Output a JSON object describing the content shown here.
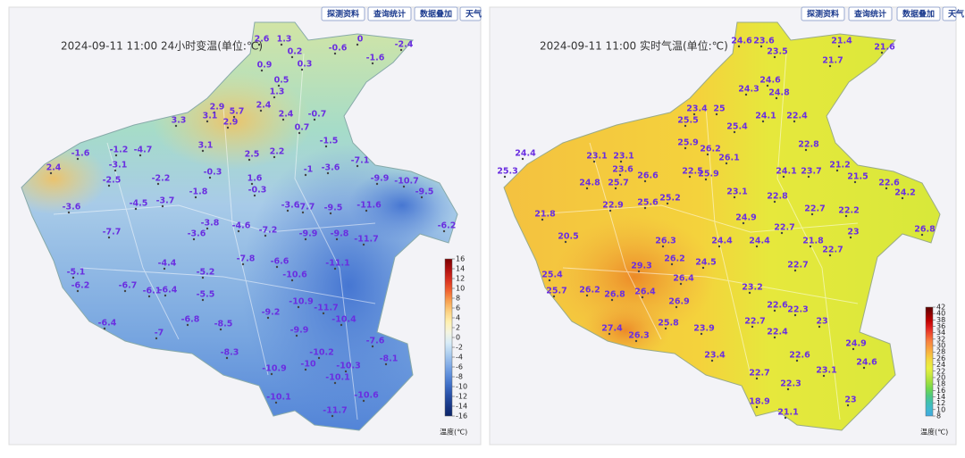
{
  "left_panel": {
    "buttons": [
      "探测资料",
      "查询统计",
      "数据叠加",
      "天气"
    ],
    "title": "2024-09-11 11:00 24小时变温(单位:℃)",
    "legend": {
      "labels": [
        16,
        14,
        12,
        10,
        8,
        6,
        4,
        2,
        0,
        -2,
        -4,
        -6,
        -8,
        -10,
        -12,
        -14,
        -16
      ],
      "colors": [
        "#7a0000",
        "#b01010",
        "#d83020",
        "#f06030",
        "#f8a050",
        "#fcd080",
        "#fff0b0",
        "#f4f4e0",
        "#d8ecf8",
        "#b0d0f0",
        "#88b0e8",
        "#6090dc",
        "#4070c8",
        "#2850a8",
        "#183888",
        "#0c2468"
      ],
      "unit": "温度(℃)"
    },
    "stations": [
      "2.6",
      "1.3",
      "0.2",
      "-0.6",
      "0",
      "-2.4",
      "-1.6",
      "0.9",
      "0.3",
      "0.5",
      "1.3",
      "2.9",
      "5.7",
      "2.4",
      "-0.7",
      "3.3",
      "3.1",
      "2.9",
      "2.4",
      "0.7",
      "-1.5",
      "-1.6",
      "-1.2",
      "-4.7",
      "3.1",
      "2.5",
      "2.2",
      "2.4",
      "-3.1",
      "-0.3",
      "-1",
      "-3.6",
      "-7.1",
      "-2.5",
      "-2.2",
      "1.6",
      "-10.7",
      "-9.9",
      "-1.8",
      "-0.3",
      "-3.6",
      "-4.5",
      "-3.7",
      "-3.6",
      "-7.7",
      "-9.5",
      "-11.6",
      "-9.5",
      "-6.2",
      "-3.8",
      "-4.6",
      "-7.2",
      "-7.7",
      "-3.6",
      "-9.9",
      "-9.8",
      "-11.7",
      "-4.4",
      "-5.1",
      "-5.2",
      "-7.8",
      "-6.6",
      "-11.1",
      "-6.2",
      "-6.7",
      "-6.1",
      "-6.4",
      "-5.5",
      "-10.6",
      "-10.9",
      "-11.7",
      "-9.2",
      "-6.8",
      "-6.4",
      "-8.5",
      "-10.4",
      "-9.9",
      "-7",
      "-7.6",
      "-8.3",
      "-10.2",
      "-8.1",
      "-10.9",
      "-10",
      "-10.3",
      "-10.1",
      "-10.1",
      "-10.6",
      "-11.7"
    ]
  },
  "right_panel": {
    "buttons": [
      "探测资料",
      "查询统计",
      "数据叠加",
      "天气"
    ],
    "title": "2024-09-11 11:00 实时气温(单位:℃)",
    "legend": {
      "labels": [
        42,
        40,
        38,
        36,
        34,
        32,
        30,
        28,
        26,
        24,
        22,
        20,
        18,
        16,
        14,
        12,
        10,
        8
      ],
      "colors": [
        "#5a0000",
        "#900000",
        "#c00000",
        "#e02020",
        "#f05030",
        "#f88040",
        "#f8a040",
        "#f8c040",
        "#f0e040",
        "#e8f040",
        "#c8e840",
        "#a0e040",
        "#70d850",
        "#50c880",
        "#40c0b0",
        "#40b8d0",
        "#40a8e0"
      ],
      "unit": "温度(℃)"
    },
    "stations": [
      "24.4",
      "25.3",
      "21.8",
      "20.5",
      "25.4",
      "25.7",
      "26.2",
      "26.8",
      "29.3",
      "27.4",
      "26.3",
      "23.1",
      "23.1",
      "23.6",
      "25.7",
      "24.8",
      "22.9",
      "25.6",
      "25.2",
      "26.4",
      "26.4",
      "26.9",
      "25.8",
      "23.9",
      "23.4",
      "24.5",
      "24.4",
      "24.9",
      "24.4",
      "24.6",
      "23.6",
      "23.5",
      "21.4",
      "21.6",
      "21.7",
      "24.3",
      "24.6",
      "24.8",
      "22.4",
      "23.4",
      "25",
      "25.5",
      "25.4",
      "24.1",
      "22.8",
      "25.9",
      "26.2",
      "26.1",
      "22.5",
      "25.9",
      "24.1",
      "23.7",
      "21.2",
      "21.5",
      "22.6",
      "24.2",
      "26.8",
      "23.1",
      "22.8",
      "22.7",
      "22.2",
      "23",
      "22.7",
      "21.8",
      "22.7",
      "22.7",
      "23.2",
      "22.6",
      "22.3",
      "22.7",
      "22.4",
      "23",
      "24.9",
      "24.6",
      "22.6",
      "22.7",
      "23.1",
      "22.3",
      "18.9",
      "23",
      "21.1",
      "26.6",
      "26.3",
      "26.2"
    ]
  }
}
